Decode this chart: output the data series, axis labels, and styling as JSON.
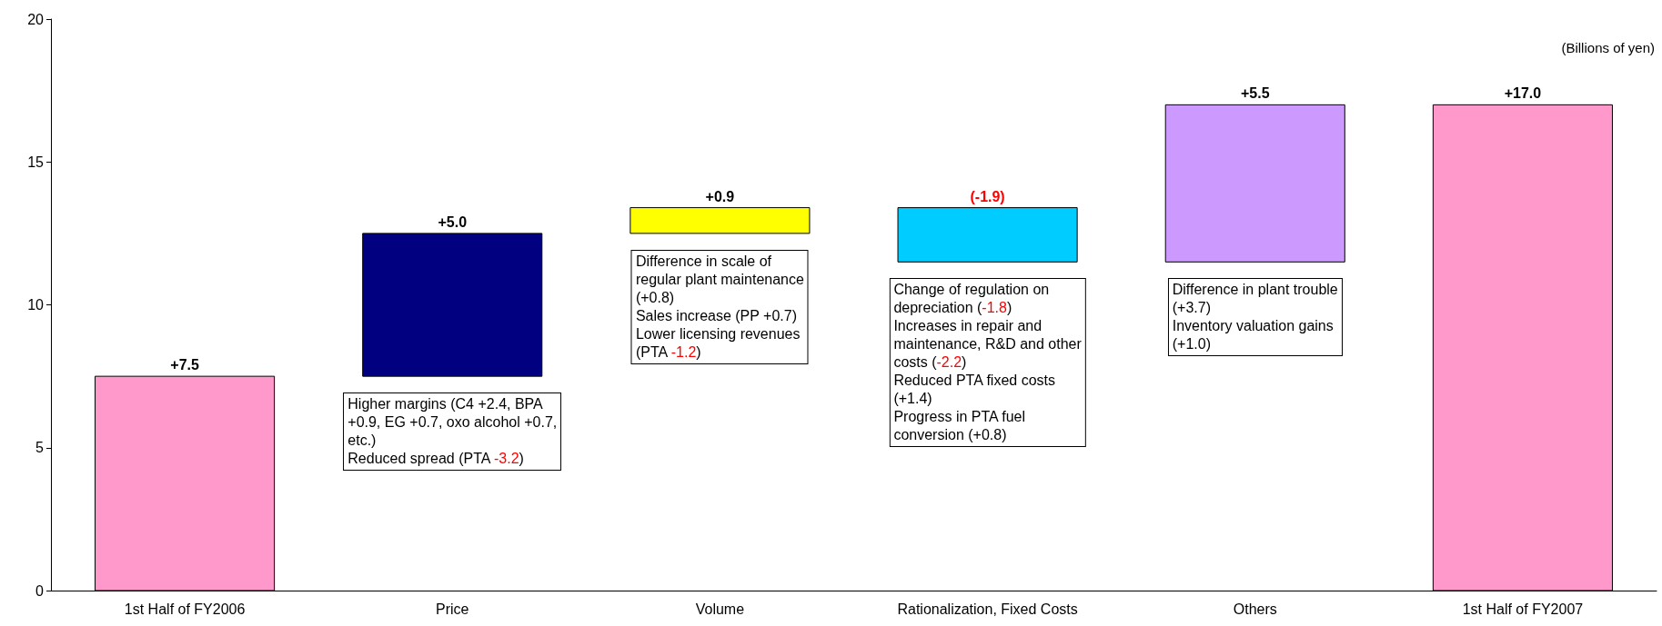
{
  "chart_data": {
    "type": "bar",
    "categories": [
      "1st Half of FY2006",
      "Price",
      "Volume",
      "Rationalization, Fixed Costs",
      "Others",
      "1st Half of FY2007"
    ],
    "values": [
      7.5,
      5.0,
      0.9,
      -1.9,
      5.5,
      17.0
    ],
    "base": [
      0,
      7.5,
      12.5,
      13.4,
      11.5,
      0
    ],
    "colors": [
      "#ff99cc",
      "#000080",
      "#ffff00",
      "#00ccff",
      "#cc99ff",
      "#ff99cc"
    ],
    "value_labels": [
      "+7.5",
      "+5.0",
      "+0.9",
      "(-1.9)",
      "+5.5",
      "+17.0"
    ],
    "ylim": [
      0,
      20
    ],
    "yticks": [
      0,
      5,
      10,
      15,
      20
    ],
    "grid": false,
    "annotations": [
      "(Billions of yen)",
      "Higher margins (C4 +2.4, BPA\n+0.9, EG +0.7, oxo alcohol +0.7,\netc.)\nReduced spread (PTA -3.2)",
      "Difference in scale of\nregular plant maintenance\n(+0.8)\nSales increase (PP +0.7)\nLower licensing revenues\n(PTA -1.2)",
      "Change of regulation on\ndepreciation (-1.8)\nIncreases in repair and\nmaintenance, R&D and other\ncosts (-2.2)\nReduced PTA fixed costs\n(+1.4)\nProgress in PTA fuel\nconversion (+0.8)",
      "Difference in plant trouble\n(+3.7)\nInventory valuation gains\n(+1.0)"
    ]
  }
}
